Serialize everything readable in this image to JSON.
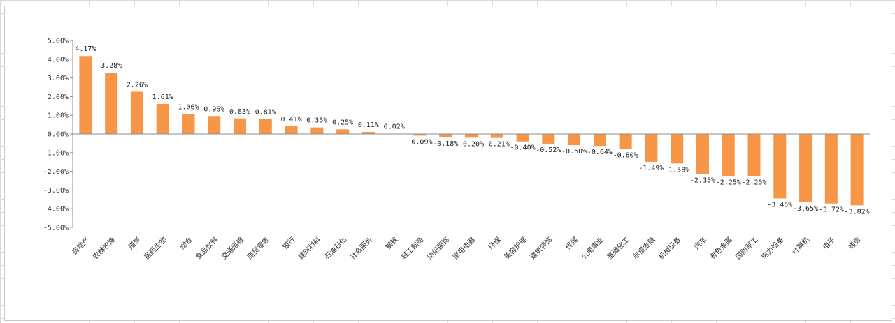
{
  "chart_data": {
    "type": "bar",
    "title": "",
    "xlabel": "",
    "ylabel": "",
    "ylim": [
      -5,
      5
    ],
    "ytick_step": 1,
    "ytick_labels": [
      "-5.00%",
      "-4.00%",
      "-3.00%",
      "-2.00%",
      "-1.00%",
      "0.00%",
      "1.00%",
      "2.00%",
      "3.00%",
      "4.00%",
      "5.00%"
    ],
    "grid": false,
    "legend": "none",
    "bar_color": "#F79646",
    "categories": [
      "房地产",
      "农林牧渔",
      "煤炭",
      "医药生物",
      "综合",
      "食品饮料",
      "交通运输",
      "商贸零售",
      "银行",
      "建筑材料",
      "石油石化",
      "社会服务",
      "钢铁",
      "轻工制造",
      "纺织服饰",
      "家用电器",
      "环保",
      "美容护理",
      "建筑装饰",
      "传媒",
      "公用事业",
      "基础化工",
      "非银金融",
      "机械设备",
      "汽车",
      "有色金属",
      "国防军工",
      "电力设备",
      "计算机",
      "电子",
      "通信"
    ],
    "values": [
      4.17,
      3.28,
      2.26,
      1.61,
      1.06,
      0.96,
      0.83,
      0.81,
      0.41,
      0.35,
      0.25,
      0.11,
      0.02,
      -0.09,
      -0.18,
      -0.2,
      -0.21,
      -0.4,
      -0.52,
      -0.6,
      -0.64,
      -0.8,
      -1.49,
      -1.58,
      -2.15,
      -2.25,
      -2.25,
      -3.45,
      -3.65,
      -3.72,
      -3.82
    ],
    "value_labels": [
      "4.17%",
      "3.28%",
      "2.26%",
      "1.61%",
      "1.06%",
      "0.96%",
      "0.83%",
      "0.81%",
      "0.41%",
      "0.35%",
      "0.25%",
      "0.11%",
      "0.02%",
      "-0.09%",
      "-0.18%",
      "-0.20%",
      "-0.21%",
      "-0.40%",
      "-0.52%",
      "-0.60%",
      "-0.64%",
      "-0.80%",
      "-1.49%",
      "-1.58%",
      "-2.15%",
      "-2.25%",
      "-2.25%",
      "-3.45%",
      "-3.65%",
      "-3.72%",
      "-3.82%"
    ]
  }
}
